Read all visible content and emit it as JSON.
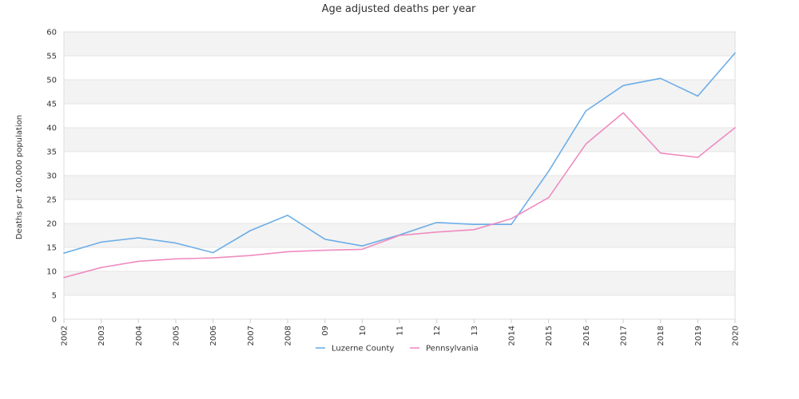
{
  "chart_data": {
    "type": "line",
    "title": "Age adjusted deaths per year",
    "xlabel": "",
    "ylabel": "Deaths per 100,000 population",
    "categories": [
      "2002",
      "2003",
      "2004",
      "2005",
      "2006",
      "2007",
      "2008",
      "09",
      "10",
      "11",
      "12",
      "13",
      "2014",
      "2015",
      "2016",
      "2017",
      "2018",
      "2019",
      "2020"
    ],
    "ylim": [
      0,
      60
    ],
    "yticks": [
      0,
      5,
      10,
      15,
      20,
      25,
      30,
      35,
      40,
      45,
      50,
      55,
      60
    ],
    "grid": true,
    "legend_position": "bottom",
    "series": [
      {
        "name": "Luzerne County",
        "color": "#6daee8",
        "values": [
          13.8,
          16.1,
          17.0,
          15.9,
          13.9,
          18.5,
          21.7,
          16.7,
          15.3,
          17.6,
          20.2,
          19.8,
          19.8,
          30.9,
          43.5,
          48.8,
          50.3,
          46.6,
          55.6
        ]
      },
      {
        "name": "Pennsylvania",
        "color": "#ef8cc0",
        "values": [
          8.7,
          10.8,
          12.1,
          12.6,
          12.8,
          13.3,
          14.1,
          14.4,
          14.6,
          17.5,
          18.2,
          18.7,
          21.0,
          25.4,
          36.6,
          43.1,
          34.7,
          33.8,
          40.0
        ]
      }
    ]
  }
}
